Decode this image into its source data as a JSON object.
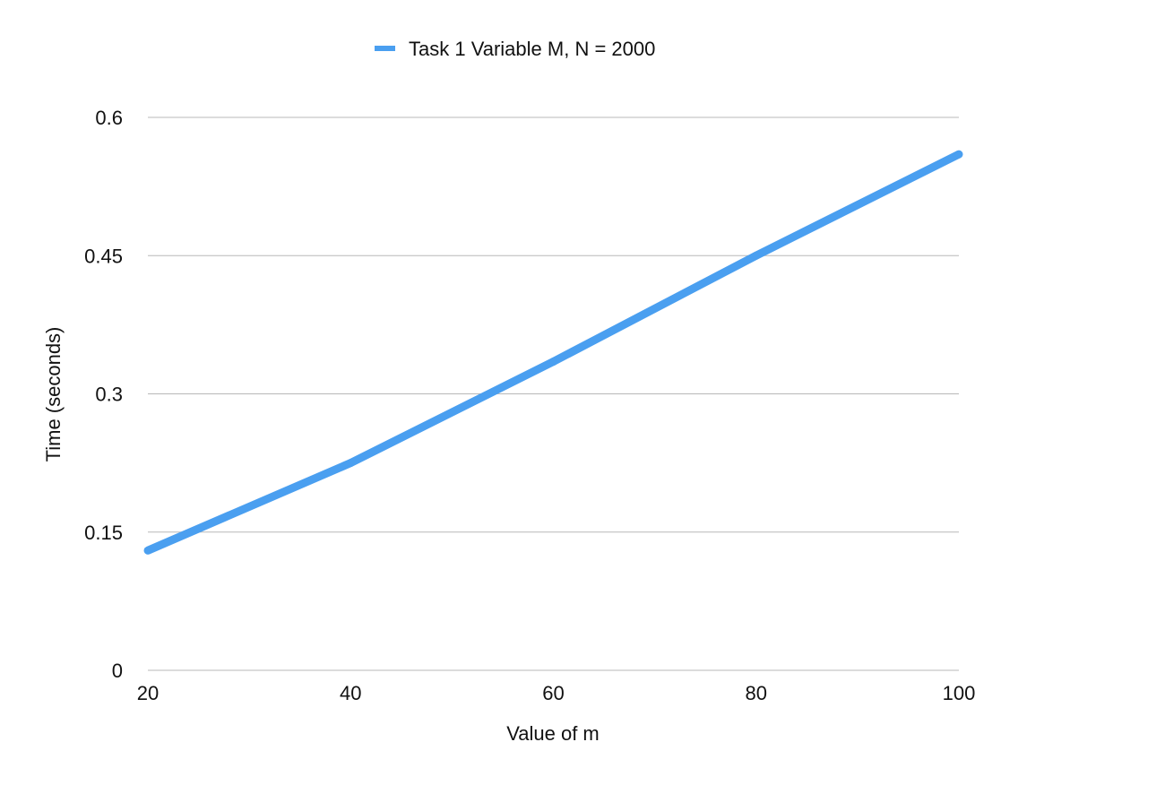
{
  "chart_data": {
    "type": "line",
    "title": "",
    "xlabel": "Value of m",
    "ylabel": "Time (seconds)",
    "x": [
      20,
      40,
      60,
      80,
      100
    ],
    "x_ticks": [
      "20",
      "40",
      "60",
      "80",
      "100"
    ],
    "y_ticks": [
      "0",
      "0.15",
      "0.3",
      "0.45",
      "0.6"
    ],
    "xlim": [
      20,
      100
    ],
    "ylim": [
      0,
      0.6
    ],
    "grid": "horizontal",
    "legend_position": "top",
    "series": [
      {
        "name": "Task 1 Variable M, N = 2000",
        "color": "#4a9ff0",
        "values": [
          0.13,
          0.225,
          0.335,
          0.45,
          0.56
        ]
      }
    ]
  }
}
